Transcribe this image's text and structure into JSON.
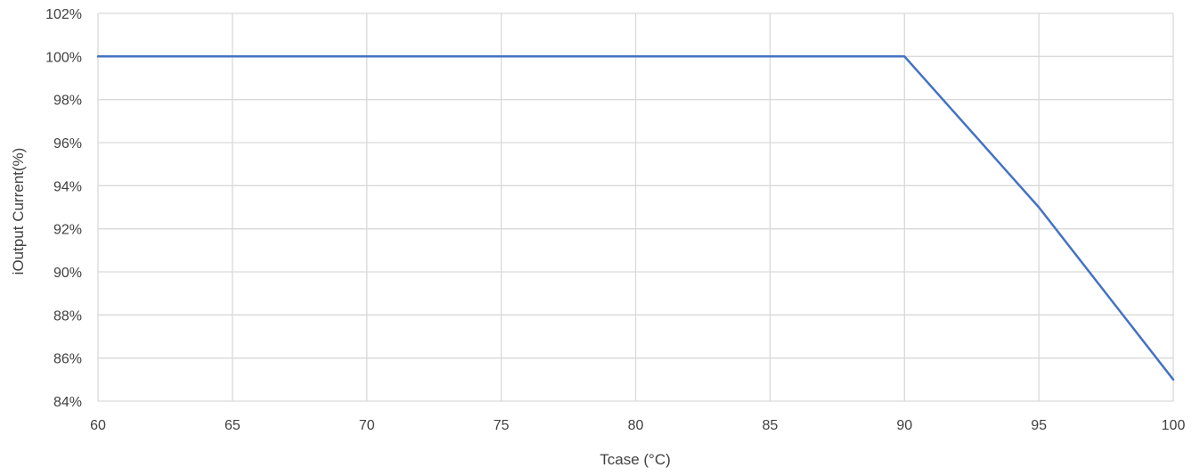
{
  "chart_data": {
    "type": "line",
    "title": "",
    "xlabel": "Tcase (°C)",
    "ylabel": "iOutput Current(%)",
    "xlim": [
      60,
      100
    ],
    "ylim": [
      84,
      102
    ],
    "x_ticks": [
      60,
      65,
      70,
      75,
      80,
      85,
      90,
      95,
      100
    ],
    "y_ticks": [
      84,
      86,
      88,
      90,
      92,
      94,
      96,
      98,
      100,
      102
    ],
    "x_tick_labels": [
      "60",
      "65",
      "70",
      "75",
      "80",
      "85",
      "90",
      "95",
      "100"
    ],
    "y_tick_labels": [
      "84%",
      "86%",
      "88%",
      "90%",
      "92%",
      "94%",
      "96%",
      "98%",
      "100%",
      "102%"
    ],
    "grid": true,
    "legend": "none",
    "series": [
      {
        "color": "#4472C4",
        "x": [
          60,
          90,
          95,
          100
        ],
        "y": [
          100,
          100,
          93,
          85
        ]
      }
    ]
  },
  "colors": {
    "gridline": "#D9D9D9",
    "text": "#404040"
  }
}
